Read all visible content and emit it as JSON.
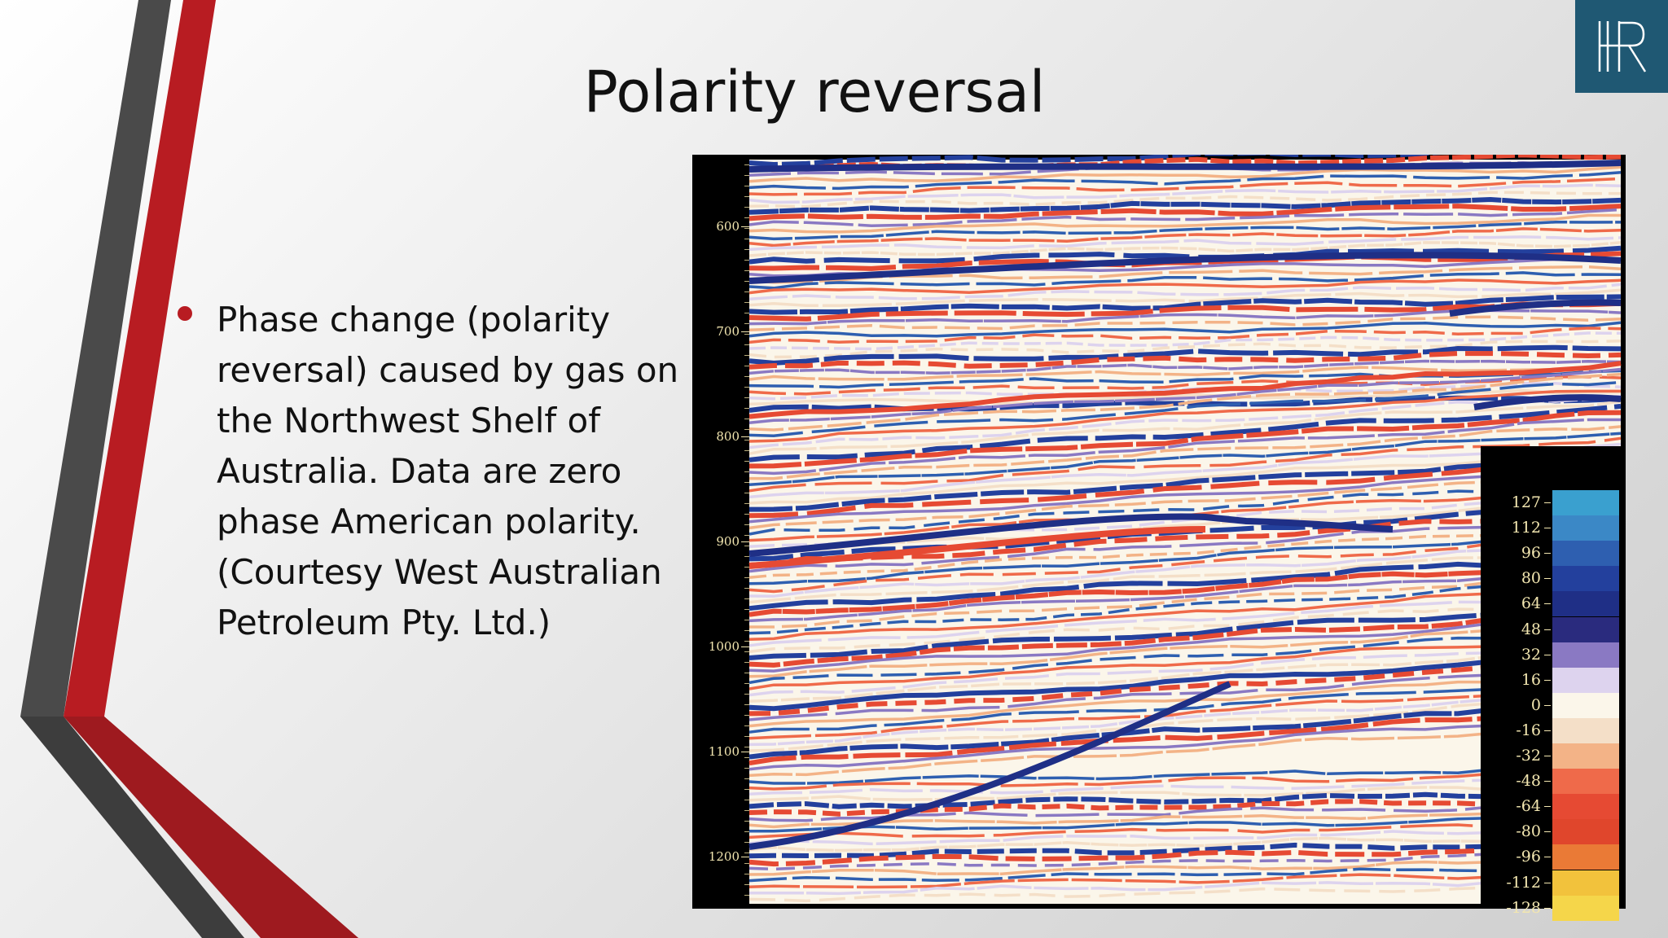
{
  "slide": {
    "title": "Polarity reversal",
    "bullet": "Phase change (polarity reversal) caused by gas on the Northwest Shelf of Australia. Data are zero phase American polarity. (Courtesy West Australian Petroleum Pty. Ltd.)"
  },
  "logo": {
    "icon": "hr-monogram-logo",
    "background": "#1f5873"
  },
  "theme": {
    "accent_red": "#b81c22",
    "accent_gray": "#4a4a4a"
  },
  "seismic": {
    "time_axis": [
      "600",
      "700",
      "800",
      "900",
      "1000",
      "1100",
      "1200"
    ],
    "color_scale": [
      {
        "value": "127",
        "color": "#3aa0cf"
      },
      {
        "value": "112",
        "color": "#3b88c6"
      },
      {
        "value": "96",
        "color": "#2e5fb0"
      },
      {
        "value": "80",
        "color": "#23409d"
      },
      {
        "value": "64",
        "color": "#1f2f86"
      },
      {
        "value": "48",
        "color": "#2a2b7e"
      },
      {
        "value": "32",
        "color": "#8a79c3"
      },
      {
        "value": "16",
        "color": "#ddd3ee"
      },
      {
        "value": "0",
        "color": "#fbf6ea"
      },
      {
        "value": "-16",
        "color": "#f4dfc8"
      },
      {
        "value": "-32",
        "color": "#f3b387"
      },
      {
        "value": "-48",
        "color": "#ef6a4a"
      },
      {
        "value": "-64",
        "color": "#e64a33"
      },
      {
        "value": "-80",
        "color": "#e0462c"
      },
      {
        "value": "-96",
        "color": "#ea7a36"
      },
      {
        "value": "-112",
        "color": "#f2c23c"
      },
      {
        "value": "-128",
        "color": "#f5d64a"
      }
    ]
  }
}
